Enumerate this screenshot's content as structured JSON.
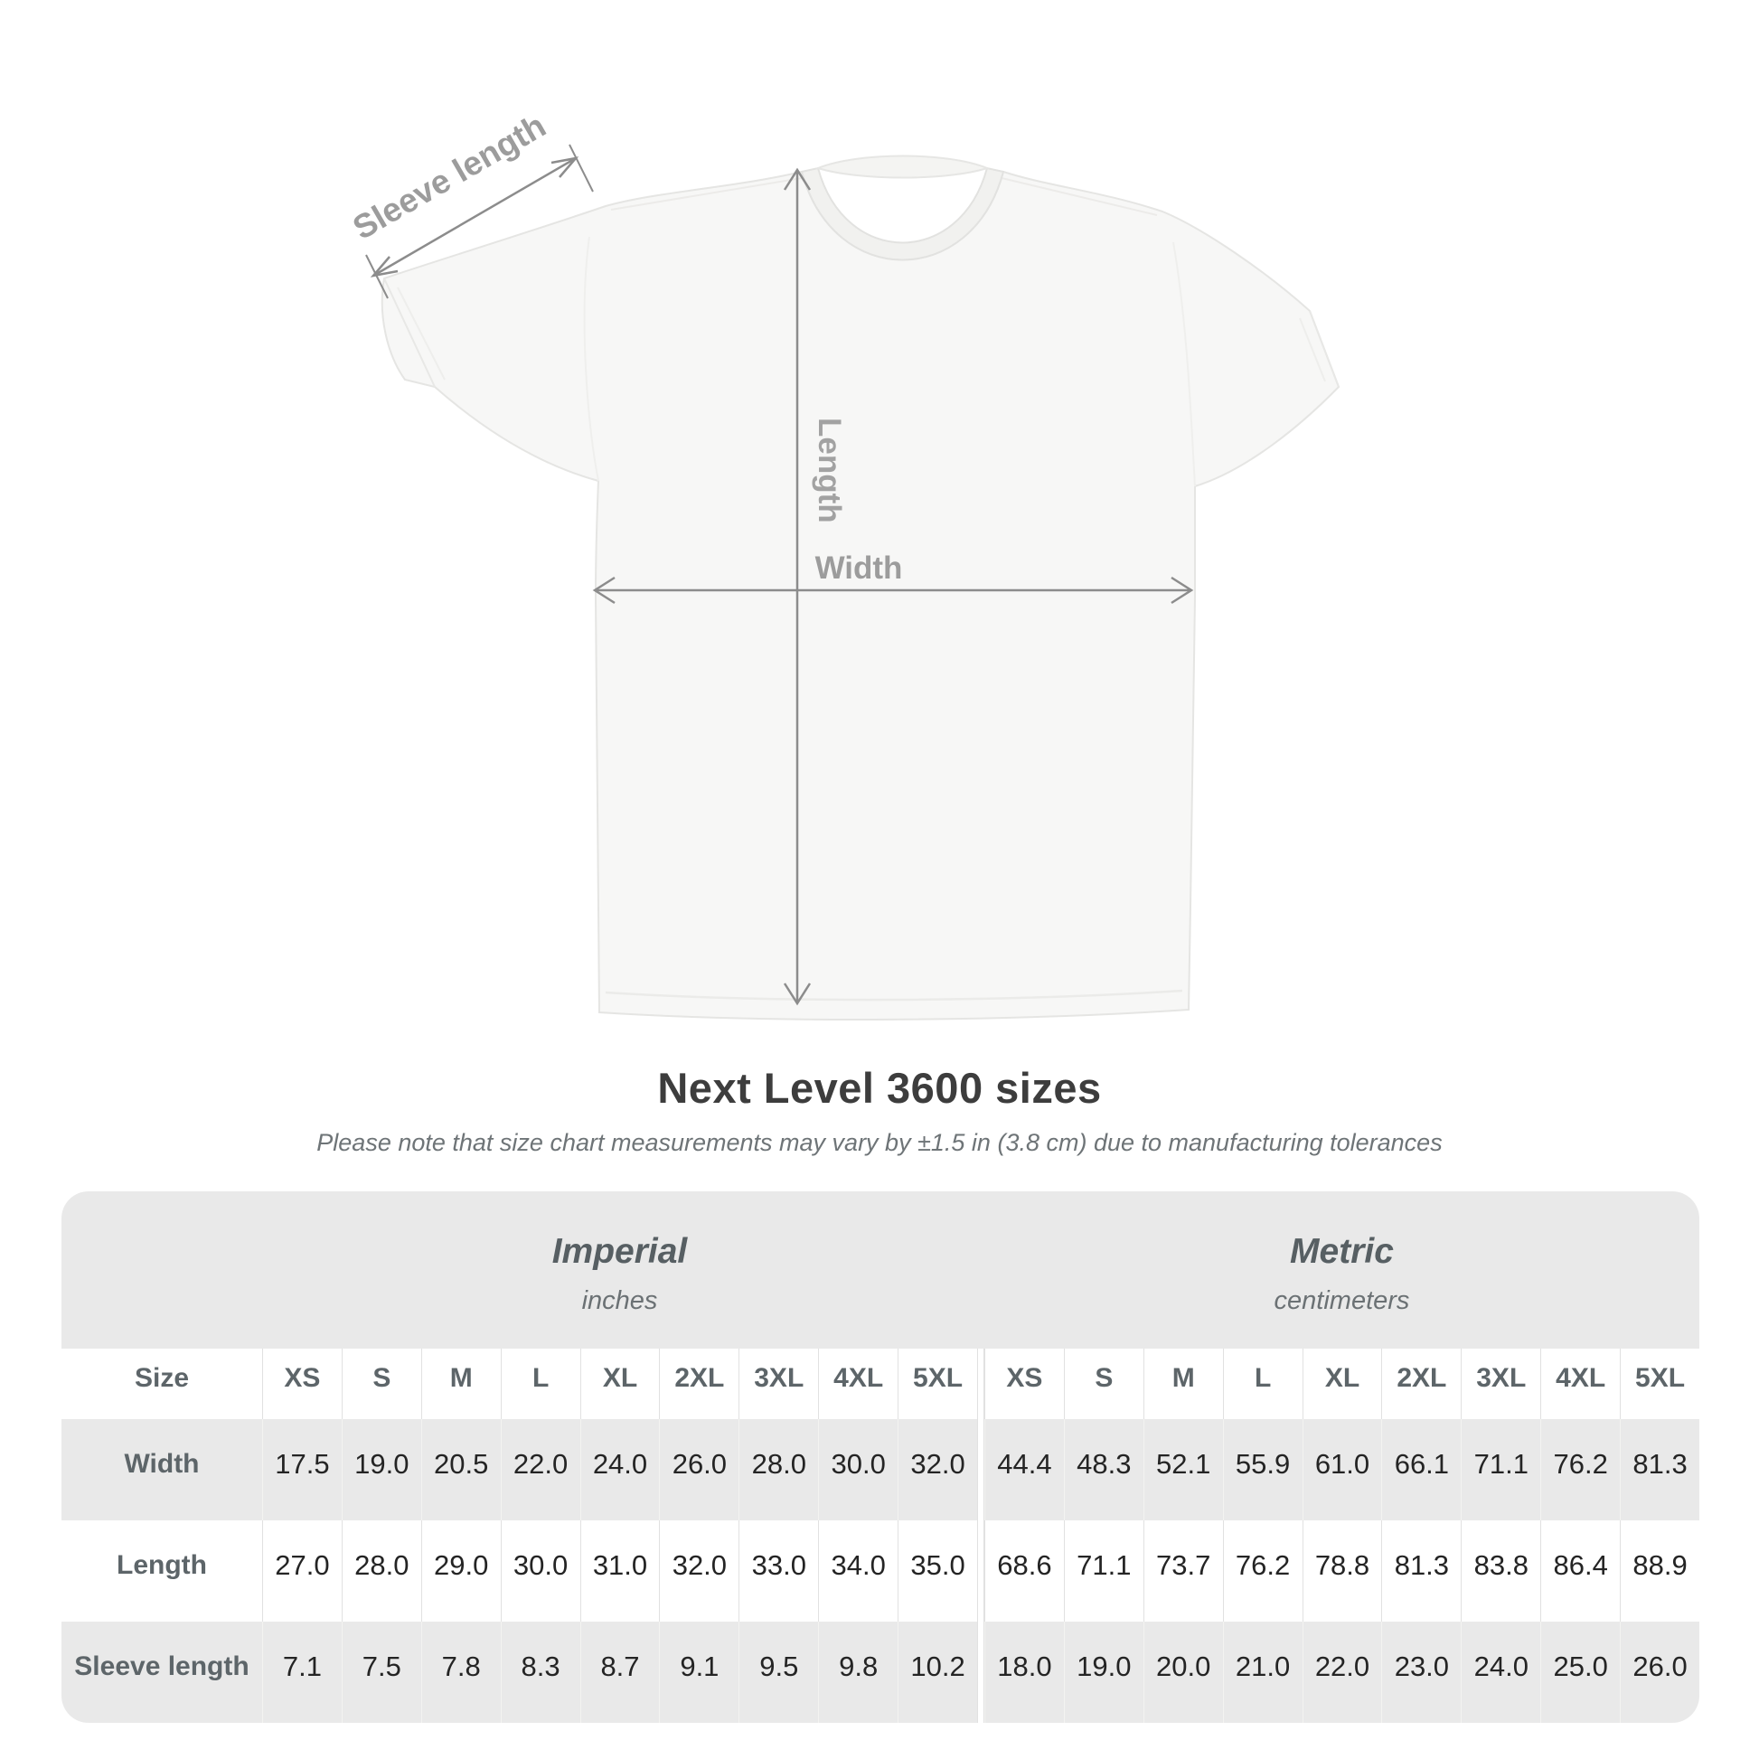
{
  "title": "Next Level 3600 sizes",
  "subtitle": "Please note that size chart measurements may vary by ±1.5 in (3.8 cm) due to manufacturing tolerances",
  "diagram": {
    "sleeve_label": "Sleeve length",
    "length_label": "Length",
    "width_label": "Width"
  },
  "colors": {
    "table_band": "#e9e9e9",
    "table_alt_row": "#e9e9e9",
    "separator": "#e1e1e1",
    "value_text": "#242424",
    "label_text": "#5d6569",
    "dimension_line": "#8c8c8c",
    "dimension_label": "#9c9c9c",
    "shirt_fill": "#f7f7f6"
  },
  "chart_data": {
    "type": "table",
    "title": "Next Level 3600 sizes",
    "note": "Please note that size chart measurements may vary by ±1.5 in (3.8 cm) due to manufacturing tolerances",
    "size_label": "Size",
    "columns": [
      "XS",
      "S",
      "M",
      "L",
      "XL",
      "2XL",
      "3XL",
      "4XL",
      "5XL"
    ],
    "unit_groups": [
      {
        "label": "Imperial",
        "unit": "inches"
      },
      {
        "label": "Metric",
        "unit": "centimeters"
      }
    ],
    "rows": [
      {
        "label": "Width",
        "imperial": [
          "17.5",
          "19.0",
          "20.5",
          "22.0",
          "24.0",
          "26.0",
          "28.0",
          "30.0",
          "32.0"
        ],
        "metric": [
          "44.4",
          "48.3",
          "52.1",
          "55.9",
          "61.0",
          "66.1",
          "71.1",
          "76.2",
          "81.3"
        ]
      },
      {
        "label": "Length",
        "imperial": [
          "27.0",
          "28.0",
          "29.0",
          "30.0",
          "31.0",
          "32.0",
          "33.0",
          "34.0",
          "35.0"
        ],
        "metric": [
          "68.6",
          "71.1",
          "73.7",
          "76.2",
          "78.8",
          "81.3",
          "83.8",
          "86.4",
          "88.9"
        ]
      },
      {
        "label": "Sleeve length",
        "imperial": [
          "7.1",
          "7.5",
          "7.8",
          "8.3",
          "8.7",
          "9.1",
          "9.5",
          "9.8",
          "10.2"
        ],
        "metric": [
          "18.0",
          "19.0",
          "20.0",
          "21.0",
          "22.0",
          "23.0",
          "24.0",
          "25.0",
          "26.0"
        ]
      }
    ]
  }
}
